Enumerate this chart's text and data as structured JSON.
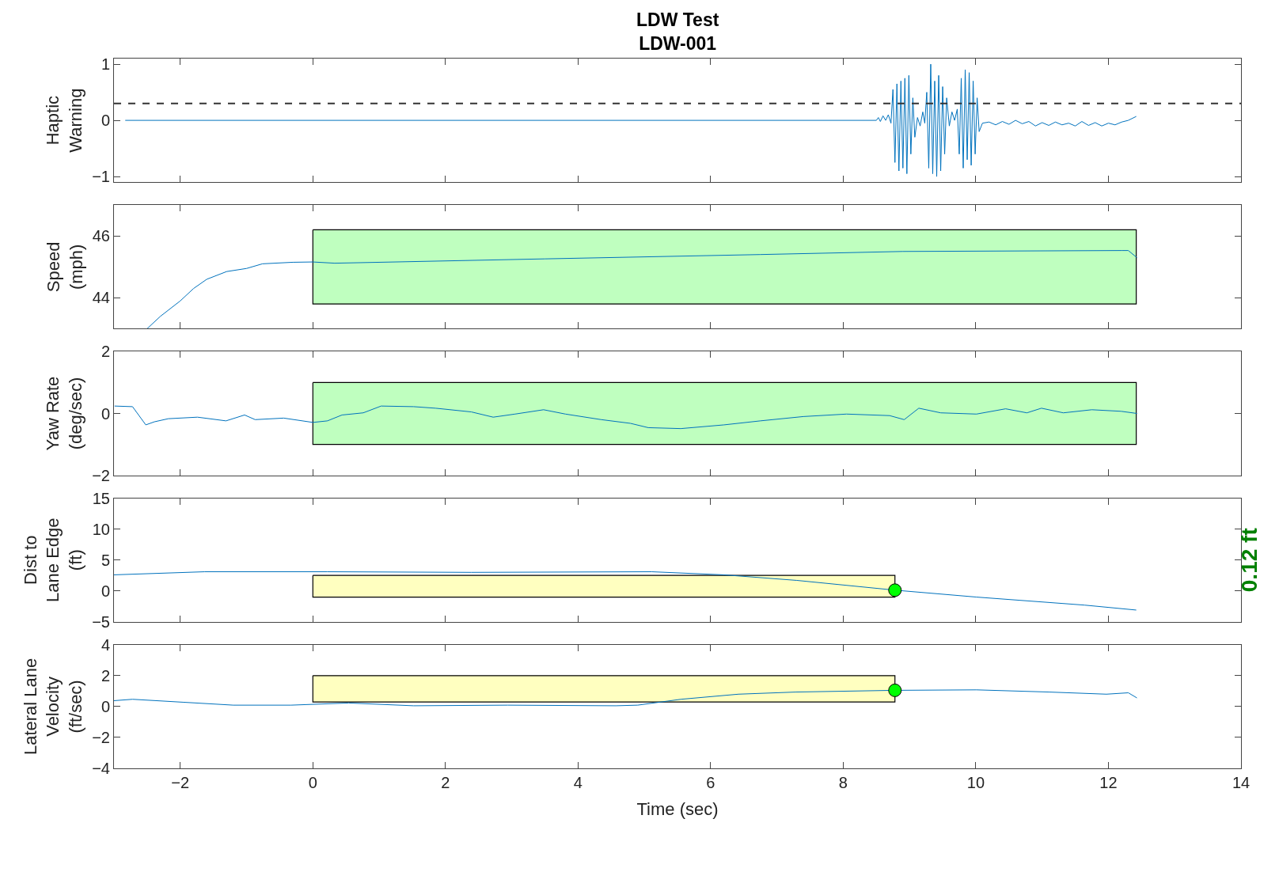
{
  "chart_data": [
    {
      "type": "line",
      "title": "LDW Test",
      "subtitle": "LDW-001",
      "ylabel": "Haptic\nWarning",
      "xlim": [
        -3,
        14
      ],
      "xticks": [
        -2,
        0,
        2,
        4,
        6,
        8,
        10,
        12,
        14
      ],
      "ylim": [
        -1.1,
        1.1
      ],
      "yticks": [
        -1,
        0,
        1
      ],
      "tick_labels": "y",
      "ref_lines": [
        {
          "axis": "y",
          "value": 0.3,
          "color": "#333333",
          "line_style": "dashed"
        }
      ],
      "series": [
        {
          "type": "line",
          "color": "#0072bd",
          "x": [
            -2.83,
            8.5,
            8.53,
            8.56,
            8.6,
            8.64,
            8.68,
            8.72,
            8.75,
            8.78,
            8.81,
            8.84,
            8.87,
            8.9,
            8.93,
            8.96,
            8.99,
            9.02,
            9.05,
            9.08,
            9.12,
            9.16,
            9.2,
            9.23,
            9.26,
            9.29,
            9.32,
            9.35,
            9.38,
            9.41,
            9.44,
            9.47,
            9.5,
            9.53,
            9.56,
            9.6,
            9.64,
            9.68,
            9.72,
            9.75,
            9.78,
            9.81,
            9.84,
            9.87,
            9.9,
            9.93,
            9.96,
            9.99,
            10.02,
            10.05,
            10.1,
            10.2,
            10.3,
            10.4,
            10.5,
            10.6,
            10.7,
            10.8,
            10.9,
            11.0,
            11.1,
            11.2,
            11.3,
            11.4,
            11.5,
            11.6,
            11.7,
            11.8,
            11.9,
            12.0,
            12.1,
            12.2,
            12.3,
            12.42
          ],
          "values": [
            0,
            0,
            0.05,
            -0.02,
            0.08,
            0.0,
            0.1,
            -0.05,
            0.55,
            -0.75,
            0.65,
            -0.9,
            0.7,
            -0.85,
            0.75,
            -0.95,
            0.8,
            -0.6,
            0.4,
            -0.3,
            0.05,
            -0.1,
            0.15,
            -0.05,
            0.5,
            -0.85,
            1.0,
            -0.95,
            0.7,
            -1.0,
            0.8,
            -0.9,
            0.6,
            -0.6,
            0.4,
            -0.1,
            0.15,
            0.0,
            0.2,
            -0.6,
            0.75,
            -0.85,
            0.9,
            -0.7,
            0.85,
            -0.8,
            0.7,
            -0.6,
            0.4,
            -0.2,
            -0.05,
            -0.03,
            -0.08,
            -0.02,
            -0.07,
            0.0,
            -0.06,
            -0.02,
            -0.1,
            -0.04,
            -0.09,
            -0.03,
            -0.08,
            -0.05,
            -0.1,
            -0.02,
            -0.09,
            -0.04,
            -0.1,
            -0.05,
            -0.08,
            -0.03,
            0.0,
            0.07
          ]
        }
      ]
    },
    {
      "type": "line",
      "ylabel": "Speed\n(mph)",
      "xlim": [
        -3,
        14
      ],
      "xticks": [
        -2,
        0,
        2,
        4,
        6,
        8,
        10,
        12,
        14
      ],
      "ylim": [
        43,
        47
      ],
      "yticks": [
        44,
        46
      ],
      "tick_labels": "y",
      "series": [
        {
          "type": "area",
          "color": "#bfffbf",
          "x": [
            0,
            12.42,
            12.42,
            0,
            0
          ],
          "values": [
            46.2,
            46.2,
            43.8,
            43.8,
            46.2
          ]
        },
        {
          "type": "line",
          "color": "#0072bd",
          "x": [
            -2.5,
            -2.3,
            -2.0,
            -1.8,
            -1.6,
            -1.3,
            -1.0,
            -0.76,
            -0.3,
            0,
            0.33,
            3.5,
            6.75,
            8.9,
            12.2,
            12.3,
            12.43
          ],
          "values": [
            43.0,
            43.4,
            43.9,
            44.3,
            44.6,
            44.85,
            44.95,
            45.1,
            45.15,
            45.16,
            45.12,
            45.26,
            45.4,
            45.5,
            45.53,
            45.53,
            45.3
          ]
        }
      ]
    },
    {
      "type": "line",
      "ylabel": "Yaw Rate\n(deg/sec)",
      "xlim": [
        -3,
        14
      ],
      "xticks": [
        -2,
        0,
        2,
        4,
        6,
        8,
        10,
        12,
        14
      ],
      "ylim": [
        -2,
        2
      ],
      "yticks": [
        -2,
        0,
        2
      ],
      "tick_labels": "y",
      "series": [
        {
          "type": "area",
          "color": "#bfffbf",
          "x": [
            0,
            12.42,
            12.42,
            0,
            0
          ],
          "values": [
            1,
            1,
            -1,
            -1,
            1
          ]
        },
        {
          "type": "line",
          "color": "#0072bd",
          "x": [
            -2.99,
            -2.72,
            -2.52,
            -2.39,
            -2.18,
            -1.74,
            -1.31,
            -1.03,
            -0.87,
            -0.44,
            0,
            0.22,
            0.44,
            0.76,
            1.03,
            1.52,
            1.85,
            2.39,
            2.72,
            3.05,
            3.48,
            3.81,
            4.35,
            4.79,
            5.06,
            5.55,
            6.2,
            6.75,
            7.4,
            8.05,
            8.7,
            8.92,
            9.14,
            9.47,
            10.01,
            10.45,
            10.77,
            10.99,
            11.32,
            11.75,
            12.19,
            12.43
          ],
          "values": [
            0.24,
            0.22,
            -0.37,
            -0.27,
            -0.17,
            -0.12,
            -0.24,
            -0.05,
            -0.2,
            -0.15,
            -0.29,
            -0.24,
            -0.05,
            0.02,
            0.24,
            0.22,
            0.17,
            0.05,
            -0.12,
            -0.02,
            0.12,
            -0.02,
            -0.2,
            -0.32,
            -0.46,
            -0.49,
            -0.37,
            -0.24,
            -0.1,
            -0.02,
            -0.07,
            -0.2,
            0.17,
            0.02,
            -0.02,
            0.15,
            0.02,
            0.17,
            0.02,
            0.12,
            0.07,
            0
          ]
        }
      ]
    },
    {
      "type": "line",
      "ylabel": "Dist to\nLane Edge\n(ft)",
      "xlim": [
        -3,
        14
      ],
      "xticks": [
        -2,
        0,
        2,
        4,
        6,
        8,
        10,
        12,
        14
      ],
      "ylim": [
        -5,
        15
      ],
      "yticks": [
        -5,
        0,
        5,
        10,
        15
      ],
      "tick_labels": "y",
      "annotations": [
        "0.12 ft"
      ],
      "series": [
        {
          "type": "area",
          "color": "#ffffc0",
          "x": [
            0,
            8.78,
            8.78,
            0,
            0
          ],
          "values": [
            2.5,
            2.5,
            -1,
            -1,
            2.5
          ]
        },
        {
          "type": "line",
          "color": "#0072bd",
          "x": [
            -3.0,
            -1.63,
            0.22,
            2.39,
            5.11,
            6.2,
            7.3,
            8.78,
            10.01,
            11.64,
            12.42
          ],
          "values": [
            2.6,
            3.1,
            3.1,
            3.0,
            3.1,
            2.6,
            1.7,
            0.12,
            -1.0,
            -2.3,
            -3.1
          ]
        },
        {
          "type": "scatter",
          "color": "#00ff00",
          "marker": "circle",
          "x": [
            8.78
          ],
          "values": [
            0.12
          ]
        }
      ]
    },
    {
      "type": "line",
      "ylabel": "Lateral Lane\nVelocity\n(ft/sec)",
      "xlabel": "Time (sec)",
      "xlim": [
        -3,
        14
      ],
      "xticks": [
        -2,
        0,
        2,
        4,
        6,
        8,
        10,
        12,
        14
      ],
      "ylim": [
        -4,
        4
      ],
      "yticks": [
        -4,
        -2,
        0,
        2,
        4
      ],
      "series": [
        {
          "type": "area",
          "color": "#ffffc0",
          "x": [
            0,
            8.78,
            8.78,
            0,
            0
          ],
          "values": [
            2,
            2,
            0.3,
            0.3,
            2
          ]
        },
        {
          "type": "line",
          "color": "#0072bd",
          "x": [
            -3.0,
            -2.72,
            -1.96,
            -1.2,
            -0.33,
            0.54,
            1.52,
            2.94,
            4.57,
            4.9,
            5.55,
            6.42,
            7.29,
            8.78,
            10.01,
            11.1,
            11.97,
            12.3,
            12.43
          ],
          "values": [
            0.38,
            0.47,
            0.28,
            0.09,
            0.09,
            0.23,
            0.05,
            0.09,
            0.05,
            0.09,
            0.47,
            0.8,
            0.94,
            1.05,
            1.08,
            0.94,
            0.8,
            0.89,
            0.56
          ]
        },
        {
          "type": "scatter",
          "color": "#00ff00",
          "marker": "circle",
          "x": [
            8.78
          ],
          "values": [
            1.05
          ]
        }
      ]
    }
  ]
}
